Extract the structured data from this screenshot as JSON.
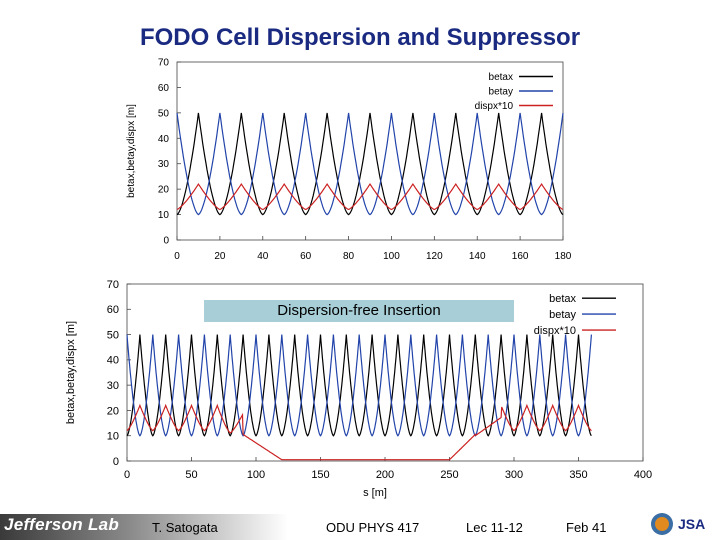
{
  "slide_title": "FODO Cell Dispersion and Suppressor",
  "footer": {
    "logo": "Jefferson Lab",
    "author": "T. Satogata",
    "course": "ODU PHYS 417",
    "lecture": "Lec 11-12",
    "date": "Feb  41",
    "badge": "JSA"
  },
  "colors": {
    "betax": "#000000",
    "betay": "#2244aa",
    "dispx": "#cc2222",
    "title": "#1a2a80"
  },
  "chart_data": [
    {
      "type": "line",
      "title": "",
      "xlabel": "",
      "ylabel": "betax,betay,dispx [m]",
      "xlim": [
        0,
        180
      ],
      "ylim": [
        0,
        70
      ],
      "xticks": [
        "0",
        "20",
        "40",
        "60",
        "80",
        "100",
        "120",
        "140",
        "160",
        "180"
      ],
      "yticks": [
        "0",
        "10",
        "20",
        "30",
        "40",
        "50",
        "60",
        "70"
      ],
      "legend_position": "top-right",
      "grid": false,
      "cell_length": 20,
      "series": [
        {
          "name": "betax",
          "peaks_at_cell_offset": 10,
          "min": 10,
          "max": 50
        },
        {
          "name": "betay",
          "peaks_at_cell_offset": 0,
          "min": 10,
          "max": 50
        },
        {
          "name": "dispx*10",
          "min": 10,
          "max": 22
        }
      ]
    },
    {
      "type": "line",
      "title": "",
      "xlabel": "s [m]",
      "ylabel": "betax,betay,dispx [m]",
      "xlim": [
        0,
        400
      ],
      "ylim": [
        0,
        70
      ],
      "xticks": [
        "0",
        "50",
        "100",
        "150",
        "200",
        "250",
        "300",
        "350",
        "400"
      ],
      "yticks": [
        "0",
        "10",
        "20",
        "30",
        "40",
        "50",
        "60",
        "70"
      ],
      "legend_position": "top-right",
      "annotation": "Dispersion-free Insertion",
      "cell_length": 20,
      "series": [
        {
          "name": "betax",
          "min": 10,
          "max": 50
        },
        {
          "name": "betay",
          "min": 10,
          "max": 50
        },
        {
          "name": "dispx*10",
          "outside_insertion": [
            10,
            22
          ],
          "inside_insertion": 0,
          "insertion_s": [
            100,
            260
          ]
        }
      ]
    }
  ]
}
